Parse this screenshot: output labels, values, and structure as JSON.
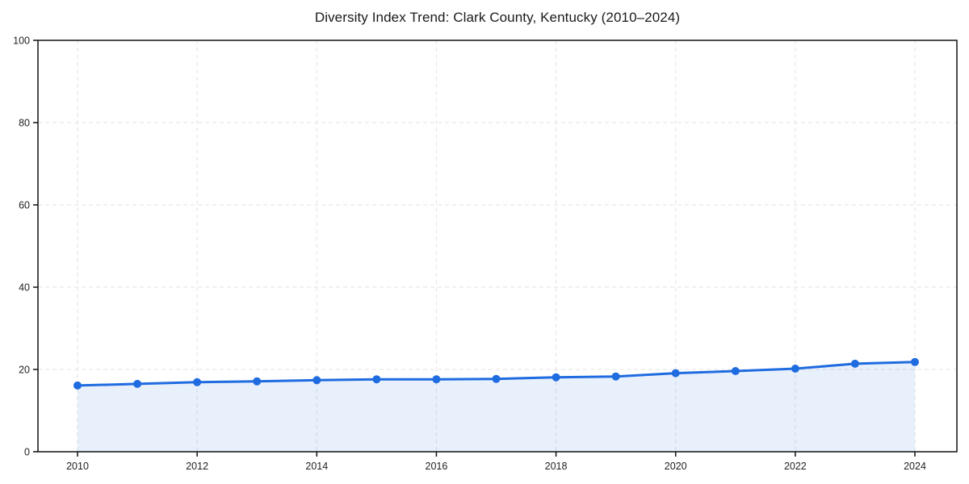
{
  "chart_data": {
    "type": "line",
    "title": "Diversity Index Trend: Clark County, Kentucky (2010–2024)",
    "x": [
      2010,
      2011,
      2012,
      2013,
      2014,
      2015,
      2016,
      2017,
      2018,
      2019,
      2020,
      2021,
      2022,
      2023,
      2024
    ],
    "series": [
      {
        "name": "Diversity Index",
        "values": [
          16.1,
          16.5,
          16.9,
          17.1,
          17.4,
          17.6,
          17.6,
          17.7,
          18.1,
          18.3,
          19.1,
          19.6,
          20.2,
          21.4,
          21.8
        ]
      }
    ],
    "xlabel": "",
    "ylabel": "",
    "ylim": [
      0,
      100
    ],
    "yticks": [
      0,
      20,
      40,
      60,
      80,
      100
    ],
    "xticks": [
      2010,
      2012,
      2014,
      2016,
      2018,
      2020,
      2022,
      2024
    ],
    "grid": "on",
    "grid_style": "dashed",
    "legend": "none",
    "area_fill": true,
    "colors": {
      "line": "#1f6be0",
      "marker": "#1f6be0",
      "area_fill": "rgba(31,107,224,0.10)",
      "gridline": "#e3e3e3",
      "frame": "#111111",
      "tick_label": "#222222",
      "title": "#1a1a1a",
      "background": "#ffffff"
    }
  }
}
